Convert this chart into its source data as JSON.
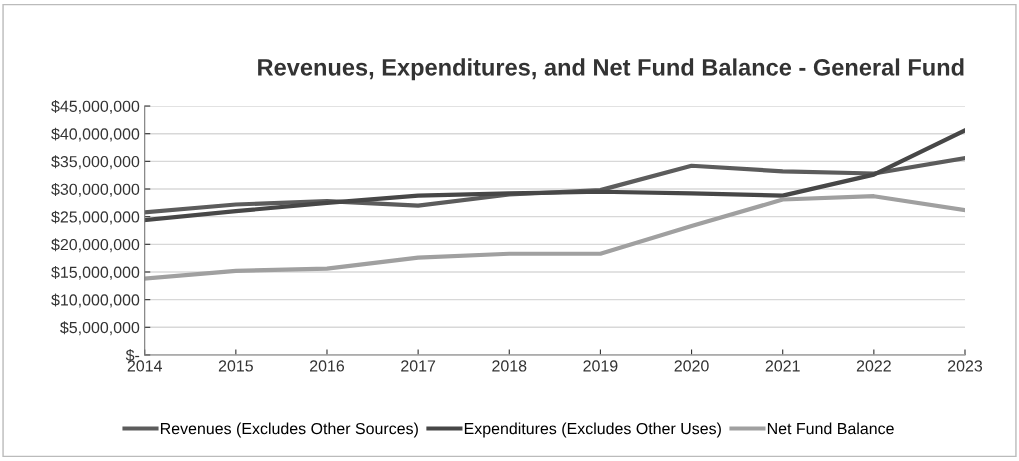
{
  "chart_data": {
    "type": "line",
    "title": "Revenues, Expenditures, and Net Fund Balance - General Fund",
    "categories": [
      "2014",
      "2015",
      "2016",
      "2017",
      "2018",
      "2019",
      "2020",
      "2021",
      "2022",
      "2023"
    ],
    "series": [
      {
        "name": "Revenues (Excludes Other Sources)",
        "color": "#5c5c5c",
        "values": [
          25800000,
          27200000,
          27800000,
          27000000,
          29000000,
          29800000,
          34200000,
          33200000,
          32800000,
          35600000
        ]
      },
      {
        "name": "Expenditures (Excludes Other Uses)",
        "color": "#474747",
        "values": [
          24400000,
          26000000,
          27500000,
          28800000,
          29200000,
          29500000,
          29200000,
          28800000,
          32600000,
          40600000
        ]
      },
      {
        "name": "Net Fund Balance",
        "color": "#a0a0a0",
        "values": [
          13800000,
          15200000,
          15600000,
          17600000,
          18300000,
          18300000,
          23300000,
          28100000,
          28700000,
          26200000
        ]
      }
    ],
    "ylim": [
      0,
      45000000
    ],
    "yticks": [
      {
        "value": 0,
        "label": "$-"
      },
      {
        "value": 5000000,
        "label": "$5,000,000"
      },
      {
        "value": 10000000,
        "label": "$10,000,000"
      },
      {
        "value": 15000000,
        "label": "$15,000,000"
      },
      {
        "value": 20000000,
        "label": "$20,000,000"
      },
      {
        "value": 25000000,
        "label": "$25,000,000"
      },
      {
        "value": 30000000,
        "label": "$30,000,000"
      },
      {
        "value": 35000000,
        "label": "$35,000,000"
      },
      {
        "value": 40000000,
        "label": "$40,000,000"
      },
      {
        "value": 45000000,
        "label": "$45,000,000"
      }
    ],
    "grid": "y",
    "legend": "bottom",
    "marker": "none",
    "line_style": "solid"
  }
}
